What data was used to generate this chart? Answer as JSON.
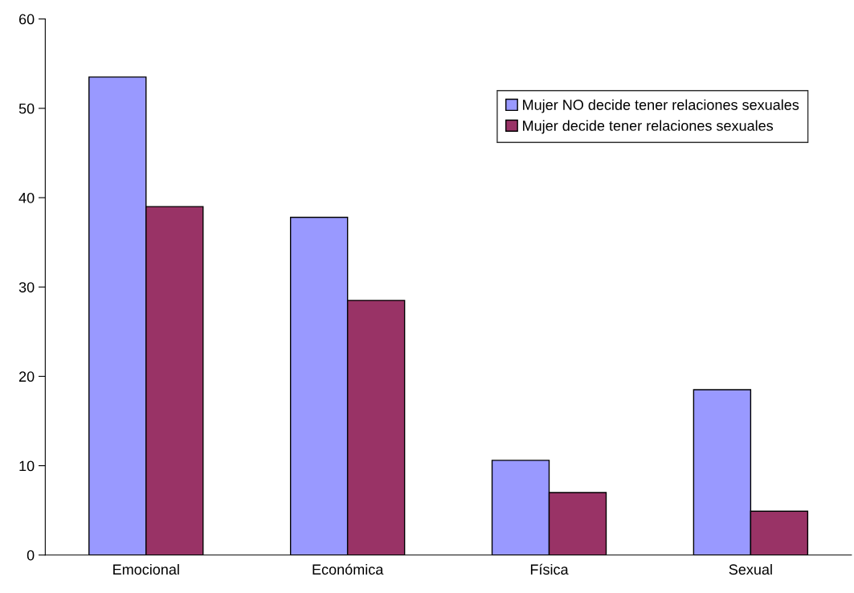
{
  "chart_data": {
    "type": "bar",
    "categories": [
      "Emocional",
      "Económica",
      "Física",
      "Sexual"
    ],
    "series": [
      {
        "name": "Mujer NO decide tener relaciones sexuales",
        "color": "#9999ff",
        "values": [
          53.5,
          37.8,
          10.6,
          18.5
        ]
      },
      {
        "name": "Mujer decide tener relaciones sexuales",
        "color": "#993366",
        "values": [
          39.0,
          28.5,
          7.0,
          4.9
        ]
      }
    ],
    "ylim": [
      0,
      60
    ],
    "yticks": [
      0,
      10,
      20,
      30,
      40,
      50,
      60
    ],
    "grid": false,
    "legend": "top right"
  }
}
